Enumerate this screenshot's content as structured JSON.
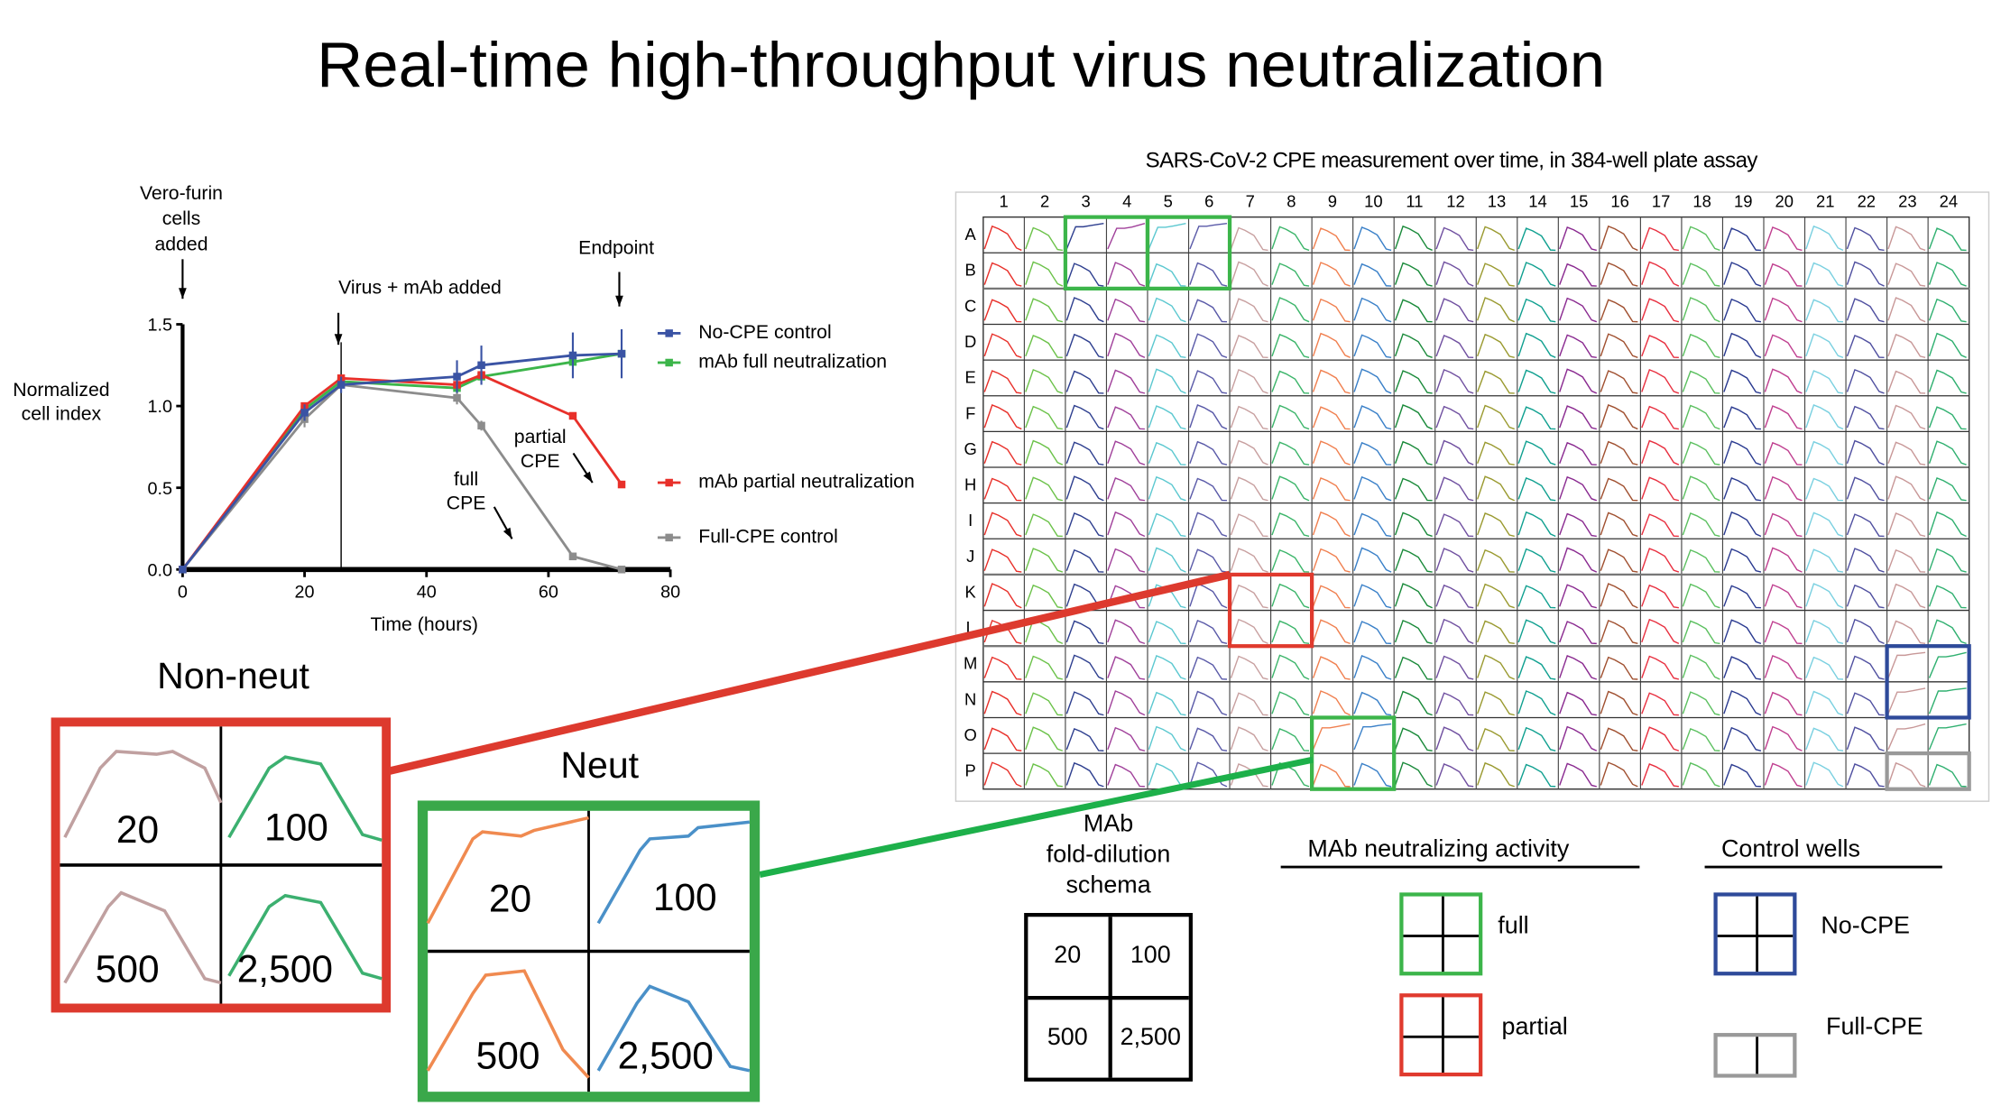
{
  "title": "Real-time high-throughput virus neutralization",
  "chart_data": {
    "type": "line",
    "xlabel": "Time (hours)",
    "ylabel": "Normalized cell index",
    "xlim": [
      0,
      80
    ],
    "ylim": [
      0,
      1.5
    ],
    "xticks": [
      "0",
      "20",
      "40",
      "60",
      "80"
    ],
    "yticks": [
      "0.0",
      "0.5",
      "1.0",
      "1.5"
    ],
    "grid": false,
    "legend_placement": "right",
    "x": [
      0,
      20,
      26,
      45,
      49,
      64,
      72
    ],
    "series": [
      {
        "name": "No-CPE control",
        "color": "#3a53a4",
        "values": [
          0,
          0.96,
          1.13,
          1.18,
          1.25,
          1.31,
          1.32
        ],
        "errors": [
          0,
          0.05,
          0.05,
          0.1,
          0.12,
          0.14,
          0.15
        ]
      },
      {
        "name": "mAb full neutralization",
        "color": "#3cb54a",
        "values": [
          0,
          0.98,
          1.15,
          1.11,
          1.18,
          1.27,
          1.32
        ],
        "errors": [
          0,
          0,
          0,
          0,
          0,
          0,
          0
        ]
      },
      {
        "name": "mAb partial neutralization",
        "color": "#e8302a",
        "values": [
          0,
          1.0,
          1.17,
          1.13,
          1.19,
          0.94,
          0.52
        ],
        "errors": [
          0,
          0,
          0,
          0,
          0,
          0,
          0
        ]
      },
      {
        "name": "Full-CPE control",
        "color": "#8c8c8c",
        "values": [
          0,
          0.92,
          1.13,
          1.05,
          0.88,
          0.08,
          0.0
        ],
        "errors": [
          0,
          0.05,
          0,
          0.04,
          0.03,
          0,
          0
        ]
      }
    ],
    "vline_x": 26,
    "annotations": {
      "cells_added": [
        "Vero-furin",
        "cells",
        "added"
      ],
      "virus_added": "Virus + mAb added",
      "endpoint": "Endpoint",
      "partial_cpe": [
        "partial",
        "CPE"
      ],
      "full_cpe": [
        "full",
        "CPE"
      ]
    }
  },
  "plate": {
    "title": "SARS-CoV-2 CPE measurement over time, in 384-well plate assay",
    "columns": [
      "1",
      "2",
      "3",
      "4",
      "5",
      "6",
      "7",
      "8",
      "9",
      "10",
      "11",
      "12",
      "13",
      "14",
      "15",
      "16",
      "17",
      "18",
      "19",
      "20",
      "21",
      "22",
      "23",
      "24"
    ],
    "rows": [
      "A",
      "B",
      "C",
      "D",
      "E",
      "F",
      "G",
      "H",
      "I",
      "J",
      "K",
      "L",
      "M",
      "N",
      "O",
      "P"
    ],
    "column_colors": [
      "#e8302a",
      "#6cc24a",
      "#2e3f8f",
      "#a0409a",
      "#5cc8d0",
      "#5a5aa8",
      "#c8a0a0",
      "#3cb56a",
      "#f08050",
      "#3a80c8",
      "#1a8a3a",
      "#7050a0",
      "#9a9a30",
      "#10a090",
      "#8a2a90",
      "#a05030",
      "#e83040",
      "#5cc060",
      "#2a3a90",
      "#c04090",
      "#7ad0e0",
      "#5050a0",
      "#c89898",
      "#30b070"
    ],
    "plateau_wells": [
      "A3",
      "A4",
      "A5",
      "A6",
      "M23",
      "M24",
      "N23",
      "N24",
      "O9",
      "O10",
      "O23",
      "O24"
    ],
    "highlights": [
      {
        "kind": "full",
        "color": "#3cb54a",
        "rows": [
          "A",
          "B"
        ],
        "cols": [
          "3",
          "4"
        ]
      },
      {
        "kind": "full",
        "color": "#3cb54a",
        "rows": [
          "A",
          "B"
        ],
        "cols": [
          "5",
          "6"
        ]
      },
      {
        "kind": "partial",
        "color": "#e03a2e",
        "rows": [
          "K",
          "L"
        ],
        "cols": [
          "7",
          "8"
        ]
      },
      {
        "kind": "no-cpe",
        "color": "#2e4a9a",
        "rows": [
          "M",
          "N"
        ],
        "cols": [
          "23",
          "24"
        ]
      },
      {
        "kind": "full",
        "color": "#3cb54a",
        "rows": [
          "O",
          "P"
        ],
        "cols": [
          "9",
          "10"
        ]
      },
      {
        "kind": "full-cpe",
        "color": "#999999",
        "rows": [
          "P"
        ],
        "cols": [
          "23",
          "24"
        ]
      }
    ]
  },
  "insets": {
    "non_neut": {
      "label": "Non-neut",
      "color": "#dd3a2e",
      "cells": [
        "20",
        "100",
        "500",
        "2,500"
      ],
      "curve_colors": [
        "#c0a0a0",
        "#3cb070",
        "#c0a0a0",
        "#3cb070"
      ]
    },
    "neut": {
      "label": "Neut",
      "color": "#3aa84a",
      "cells": [
        "20",
        "100",
        "500",
        "2,500"
      ],
      "curve_colors": [
        "#f08a50",
        "#4a90c8",
        "#f08a50",
        "#4a90c8"
      ]
    }
  },
  "legend": {
    "schema_title": [
      "MAb",
      "fold-dilution",
      "schema"
    ],
    "schema_cells": [
      "20",
      "100",
      "500",
      "2,500"
    ],
    "activity_title": "MAb neutralizing activity",
    "activity_items": [
      {
        "label": "full",
        "color": "#3cb54a"
      },
      {
        "label": "partial",
        "color": "#e03a2e"
      }
    ],
    "controls_title": "Control wells",
    "control_items": [
      {
        "label": "No-CPE",
        "color": "#2e4a9a"
      },
      {
        "label": "Full-CPE",
        "color": "#999999"
      }
    ]
  }
}
